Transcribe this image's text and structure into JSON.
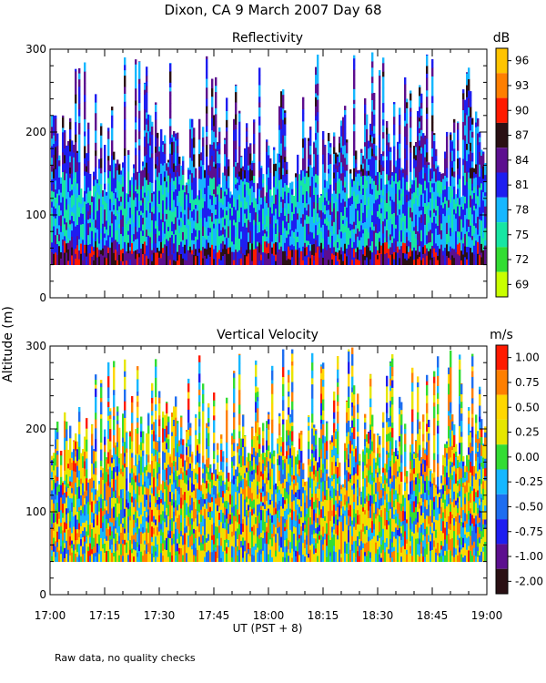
{
  "page": {
    "title": "Dixon, CA  9 March 2007  Day  68",
    "ylabel": "Altitude (m)",
    "xlabel": "UT  (PST + 8)",
    "footnote": "Raw data, no quality checks"
  },
  "chart_data": [
    {
      "type": "heatmap",
      "title": "Reflectivity",
      "colorbar_unit": "dB",
      "colorbar_ticks": [
        "96",
        "93",
        "90",
        "87",
        "84",
        "81",
        "78",
        "75",
        "72",
        "69"
      ],
      "colorbar_colors": [
        "#ffc400",
        "#ff7f00",
        "#ff1a00",
        "#2a1014",
        "#5c0f8f",
        "#1e1ef0",
        "#16b7ff",
        "#17e6a3",
        "#33dd33",
        "#c9ff00"
      ],
      "x_ticks": [
        "17:00",
        "17:15",
        "17:30",
        "17:45",
        "18:00",
        "18:15",
        "18:30",
        "18:45",
        "19:00"
      ],
      "y_ticks": [
        "0",
        "100",
        "200",
        "300"
      ],
      "xlim": [
        "17:00",
        "19:00"
      ],
      "ylim": [
        0,
        300
      ],
      "data_altitude_range_m": [
        40,
        300
      ],
      "description": "time-height curtain of radar reflectivity; echoes 40-220 m dense, sparse above"
    },
    {
      "type": "heatmap",
      "title": "Vertical Velocity",
      "colorbar_unit": "m/s",
      "colorbar_ticks": [
        "1.00",
        "0.75",
        "0.50",
        "0.25",
        "0.00",
        "-0.25",
        "-0.50",
        "-0.75",
        "-1.00",
        "-2.00"
      ],
      "colorbar_colors": [
        "#ff1a00",
        "#ff7f00",
        "#ffd700",
        "#e6e600",
        "#33dd33",
        "#16b7ff",
        "#1e6ef0",
        "#1e1ef0",
        "#5c0f8f",
        "#2a1014"
      ],
      "x_ticks": [
        "17:00",
        "17:15",
        "17:30",
        "17:45",
        "18:00",
        "18:15",
        "18:30",
        "18:45",
        "19:00"
      ],
      "y_ticks": [
        "0",
        "100",
        "200",
        "300"
      ],
      "xlim": [
        "17:00",
        "19:00"
      ],
      "ylim": [
        0,
        300
      ],
      "data_altitude_range_m": [
        40,
        300
      ]
    }
  ]
}
